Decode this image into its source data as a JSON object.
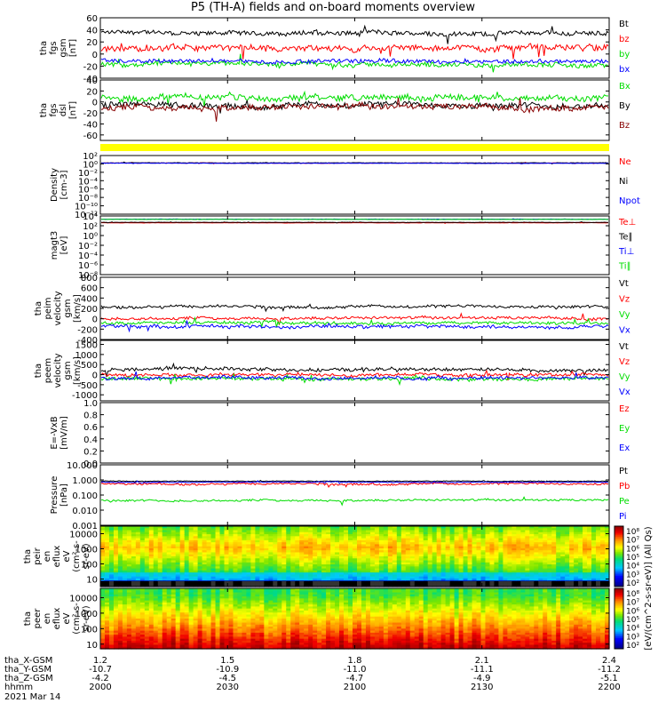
{
  "title": "P5 (TH-A) fields and on-board moments overview",
  "colors": {
    "black": "#000000",
    "red": "#ff0000",
    "green": "#00dd00",
    "blue": "#0000ff",
    "dark_red": "#880000",
    "yellow": "#ffff00"
  },
  "chart_data": [
    {
      "type": "line",
      "id": "fgs_gsm",
      "ylabel": [
        "tha",
        "fgs",
        "gsm",
        "[nT]"
      ],
      "ylim": [
        -40,
        60
      ],
      "yticks": [
        "60",
        "40",
        "20",
        "0",
        "-20",
        "-40"
      ],
      "tick_values": [
        60,
        40,
        20,
        0,
        -20,
        -40
      ],
      "series": [
        {
          "name": "Bt",
          "color": "#000000",
          "level": 35,
          "noise": 7
        },
        {
          "name": "bz",
          "color": "#ff0000",
          "level": 10,
          "noise": 9
        },
        {
          "name": "by",
          "color": "#00dd00",
          "level": -18,
          "noise": 7
        },
        {
          "name": "bx",
          "color": "#0000ff",
          "level": -12,
          "noise": 6
        }
      ]
    },
    {
      "type": "line",
      "id": "fgs_dsl",
      "ylabel": [
        "tha",
        "fgs",
        "dsl",
        "[nT]"
      ],
      "ylim": [
        -70,
        40
      ],
      "yticks": [
        "40",
        "20",
        "0",
        "-20",
        "-40",
        "-60"
      ],
      "tick_values": [
        40,
        20,
        0,
        -20,
        -40,
        -60
      ],
      "series": [
        {
          "name": "Bx",
          "color": "#00dd00",
          "level": 8,
          "noise": 10
        },
        {
          "name": "By",
          "color": "#000000",
          "level": -5,
          "noise": 10
        },
        {
          "name": "Bz",
          "color": "#880000",
          "level": -10,
          "noise": 10
        }
      ]
    },
    {
      "type": "bar",
      "id": "state_bar",
      "color": "#ffff00"
    },
    {
      "type": "line",
      "id": "density",
      "ylabel": [
        "Density",
        "[cm-3]"
      ],
      "log": true,
      "ylim_exp": [
        -12,
        2
      ],
      "ytick_labels": [
        "10²",
        "10⁰",
        "10⁻²",
        "10⁻⁴",
        "10⁻⁶",
        "10⁻⁸",
        "10⁻¹⁰",
        "10⁻¹²"
      ],
      "tick_exps": [
        2,
        0,
        -2,
        -4,
        -6,
        -8,
        -10,
        -12
      ],
      "series": [
        {
          "name": "Ne",
          "color": "#ff0000",
          "level": 0.2,
          "noise": 0.1
        },
        {
          "name": "Ni",
          "color": "#000000",
          "level": 0.25,
          "noise": 0.1
        },
        {
          "name": "Npot",
          "color": "#0000ff",
          "level": 0.15,
          "noise": 0.08
        }
      ]
    },
    {
      "type": "line",
      "id": "temperature",
      "ylabel": [
        "magt3",
        "[eV]"
      ],
      "log": true,
      "ylim_exp": [
        -8,
        4
      ],
      "ytick_labels": [
        "10⁴",
        "10²",
        "10⁰",
        "10⁻²",
        "10⁻⁴",
        "10⁻⁶",
        "10⁻⁸"
      ],
      "tick_exps": [
        4,
        2,
        0,
        -2,
        -4,
        -6,
        -8
      ],
      "series": [
        {
          "name": "Te⊥",
          "color": "#ff0000",
          "level": 2.6,
          "noise": 0.06
        },
        {
          "name": "Te∥",
          "color": "#000000",
          "level": 2.7,
          "noise": 0.06
        },
        {
          "name": "Ti⊥",
          "color": "#0000ff",
          "level": 3.35,
          "noise": 0.05
        },
        {
          "name": "Ti∥",
          "color": "#00dd00",
          "level": 3.3,
          "noise": 0.05
        }
      ]
    },
    {
      "type": "line",
      "id": "peim_velocity",
      "ylabel": [
        "tha",
        "peim",
        "velocity",
        "gsm",
        "[km/s]"
      ],
      "ylim": [
        -400,
        800
      ],
      "yticks": [
        "800",
        "600",
        "400",
        "200",
        "0",
        "-200",
        "-400"
      ],
      "tick_values": [
        800,
        600,
        400,
        200,
        0,
        -200,
        -400
      ],
      "series": [
        {
          "name": "Vt",
          "color": "#000000",
          "level": 240,
          "noise": 50
        },
        {
          "name": "Vz",
          "color": "#ff0000",
          "level": 10,
          "noise": 50
        },
        {
          "name": "Vy",
          "color": "#00dd00",
          "level": -80,
          "noise": 50
        },
        {
          "name": "Vx",
          "color": "#0000ff",
          "level": -150,
          "noise": 60
        }
      ]
    },
    {
      "type": "line",
      "id": "peem_velocity",
      "ylabel": [
        "tha",
        "peem",
        "velocity",
        "gsm",
        "[km/s]"
      ],
      "ylim": [
        -1300,
        1700
      ],
      "yticks": [
        "1500",
        "1000",
        "500",
        "0",
        "-500",
        "-1000"
      ],
      "tick_values": [
        1500,
        1000,
        500,
        0,
        -500,
        -1000
      ],
      "series": [
        {
          "name": "Vt",
          "color": "#000000",
          "level": 250,
          "noise": 150
        },
        {
          "name": "Vz",
          "color": "#ff0000",
          "level": 0,
          "noise": 150
        },
        {
          "name": "Vy",
          "color": "#00dd00",
          "level": -200,
          "noise": 150
        },
        {
          "name": "Vx",
          "color": "#0000ff",
          "level": -150,
          "noise": 150
        }
      ]
    },
    {
      "type": "line",
      "id": "efield",
      "ylabel": [
        "E=-VxB",
        "[mV/m]"
      ],
      "ylim": [
        0,
        1
      ],
      "yticks": [
        "1.0",
        "0.8",
        "0.6",
        "0.4",
        "0.2",
        "0.0"
      ],
      "tick_values": [
        1,
        0.8,
        0.6,
        0.4,
        0.2,
        0
      ],
      "series": [
        {
          "name": "Ez",
          "color": "#ff0000"
        },
        {
          "name": "Ey",
          "color": "#00dd00"
        },
        {
          "name": "Ex",
          "color": "#0000ff"
        }
      ]
    },
    {
      "type": "line",
      "id": "pressure",
      "ylabel": [
        "Pressure",
        "[nPa]"
      ],
      "log": true,
      "ylim_exp": [
        -3,
        1
      ],
      "ytick_labels": [
        "10.000",
        "1.000",
        "0.100",
        "0.010",
        "0.001"
      ],
      "tick_exps": [
        1,
        0,
        -1,
        -2,
        -3
      ],
      "series": [
        {
          "name": "Pt",
          "color": "#000000",
          "level": -0.08,
          "noise": 0.04
        },
        {
          "name": "Pb",
          "color": "#ff0000",
          "level": -0.25,
          "noise": 0.12
        },
        {
          "name": "Pe",
          "color": "#00dd00",
          "level": -1.35,
          "noise": 0.12
        },
        {
          "name": "Pi",
          "color": "#0000ff",
          "level": -0.15,
          "noise": 0.05
        }
      ]
    },
    {
      "type": "heatmap",
      "id": "peir_eflux",
      "ylabel": [
        "tha",
        "peir",
        "en",
        "eflux",
        "eV",
        "(cm²-s-",
        "sr-eV)"
      ],
      "log": true,
      "yticks": [
        "10000",
        "1000",
        "100",
        "10"
      ],
      "tick_exps": [
        4,
        3,
        2,
        1
      ],
      "ylim_exp": [
        0.5,
        4.5
      ]
    },
    {
      "type": "heatmap",
      "id": "peer_eflux",
      "ylabel": [
        "tha",
        "peer",
        "en",
        "eflux",
        "eV",
        "(cm²-s-",
        "sr-eV)"
      ],
      "log": true,
      "yticks": [
        "10000",
        "1000",
        "100",
        "10"
      ],
      "tick_exps": [
        4,
        3,
        2,
        1
      ],
      "ylim_exp": [
        0.7,
        4.6
      ]
    }
  ],
  "colorbar": {
    "ticks": [
      "10⁸",
      "10⁷",
      "10⁶",
      "10⁵",
      "10⁴",
      "10³",
      "10²"
    ],
    "label": "[eV/(cm^2-s-sr-eV)] (All Qs)",
    "label2": "[eV/(cm^2-s-sr-eV)]"
  },
  "xaxis": {
    "rows": [
      {
        "label": "tha_X-GSM",
        "values": [
          "1.2",
          "1.5",
          "1.8",
          "2.1",
          "2.4"
        ]
      },
      {
        "label": "tha_Y-GSM",
        "values": [
          "-10.7",
          "-10.9",
          "-11.0",
          "-11.1",
          "-11.2"
        ]
      },
      {
        "label": "tha_Z-GSM",
        "values": [
          "-4.2",
          "-4.5",
          "-4.7",
          "-4.9",
          "-5.1"
        ]
      },
      {
        "label": "hhmm",
        "values": [
          "2000",
          "2030",
          "2100",
          "2130",
          "2200"
        ]
      }
    ],
    "date": "2021 Mar 14"
  }
}
